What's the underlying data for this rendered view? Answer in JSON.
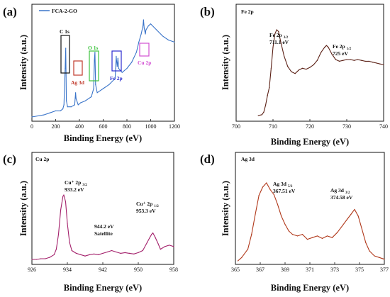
{
  "chart_data": [
    {
      "panel": "(a)",
      "type": "line",
      "legend": "FCA-2-GO",
      "legend_position": "top-left",
      "xlabel": "Binding Energy (eV)",
      "ylabel": "Intensity (a.u.)",
      "xlim": [
        0,
        1200
      ],
      "xticks": [
        0,
        200,
        400,
        600,
        800,
        1000,
        1200
      ],
      "y_ticks_shown": false,
      "line_color": "#3a74c9",
      "series": [
        {
          "x": [
            0,
            100,
            150,
            200,
            240,
            260,
            270,
            280,
            285,
            290,
            300,
            330,
            360,
            368,
            372,
            390,
            410,
            450,
            500,
            520,
            526,
            531,
            536,
            550,
            600,
            650,
            700,
            705,
            710,
            712,
            718,
            724,
            730,
            760,
            800,
            840,
            880,
            900,
            920,
            935,
            940,
            945,
            955,
            960,
            980,
            1000,
            1050,
            1100,
            1150,
            1200
          ],
          "y": [
            1.8,
            1.9,
            2.0,
            2.1,
            2.1,
            2.2,
            2.4,
            4.2,
            5.2,
            2.6,
            2.3,
            2.3,
            2.4,
            3.0,
            2.7,
            2.4,
            2.5,
            2.6,
            2.8,
            3.2,
            4.6,
            5.0,
            3.4,
            3.0,
            3.2,
            3.4,
            3.7,
            4.2,
            4.8,
            4.6,
            4.3,
            4.7,
            4.2,
            4.0,
            4.2,
            4.5,
            5.0,
            5.5,
            5.9,
            6.3,
            6.6,
            6.2,
            5.9,
            6.1,
            6.3,
            6.4,
            6.1,
            5.8,
            5.6,
            5.5
          ]
        }
      ],
      "annotations": [
        {
          "label": "C 1s",
          "x": 285,
          "box_color": "#111111"
        },
        {
          "label": "Ag 3d",
          "x": 368,
          "box_color": "#c0392b"
        },
        {
          "label": "O 1s",
          "x": 531,
          "box_color": "#3cc33c"
        },
        {
          "label": "Fe 2p",
          "x": 711,
          "box_color": "#2b2bd0"
        },
        {
          "label": "Cu 2p",
          "x": 933,
          "box_color": "#d24fd2"
        }
      ]
    },
    {
      "panel": "(b)",
      "type": "line",
      "tag": "Fe 2p",
      "xlabel": "Binding Energy (eV)",
      "ylabel": "Intensity (a.u.)",
      "xlim": [
        700,
        740
      ],
      "xticks": [
        700,
        710,
        720,
        730,
        740
      ],
      "y_ticks_shown": false,
      "line_color": "#5a1f14",
      "peaks": [
        {
          "main": "Fe 2p",
          "sub": "3/2",
          "value": "711.1 eV"
        },
        {
          "main": "Fe 2p",
          "sub": "1/2",
          "value": "725 eV"
        }
      ],
      "series": [
        {
          "x": [
            706,
            707,
            707.5,
            708,
            708.5,
            709,
            709.5,
            710,
            710.5,
            711,
            711.5,
            712,
            713,
            714,
            715,
            716,
            717,
            718,
            719,
            720,
            721,
            722,
            723,
            724,
            724.5,
            725,
            726,
            727,
            728,
            729,
            730,
            731,
            732,
            733,
            734,
            735,
            736,
            737,
            738,
            739,
            740
          ],
          "y": [
            0.02,
            0.03,
            0.06,
            0.14,
            0.25,
            0.34,
            0.56,
            0.8,
            0.95,
            1.0,
            0.98,
            0.88,
            0.7,
            0.58,
            0.52,
            0.5,
            0.54,
            0.56,
            0.55,
            0.57,
            0.6,
            0.65,
            0.74,
            0.8,
            0.82,
            0.8,
            0.72,
            0.66,
            0.64,
            0.65,
            0.66,
            0.66,
            0.65,
            0.66,
            0.65,
            0.64,
            0.64,
            0.63,
            0.62,
            0.61,
            0.6
          ]
        }
      ]
    },
    {
      "panel": "(c)",
      "type": "line",
      "tag": "Cu 2p",
      "xlabel": "Binding Energy (eV)",
      "ylabel": "Intensity (a.u.)",
      "xlim": [
        926,
        958
      ],
      "xticks": [
        926,
        934,
        942,
        950,
        958
      ],
      "y_ticks_shown": false,
      "line_color": "#a3206b",
      "peaks": [
        {
          "main": "Cu⁺ 2p",
          "sub": "3/2",
          "value": "933.2 eV"
        },
        {
          "main": "944.2 eV",
          "sub": "",
          "value": "Satellite"
        },
        {
          "main": "Cu⁺ 2p",
          "sub": "1/2",
          "value": "953.3 eV"
        }
      ],
      "series": [
        {
          "x": [
            926,
            927,
            928,
            929,
            930,
            931,
            931.5,
            932,
            932.5,
            933,
            933.2,
            933.6,
            934,
            934.5,
            935,
            936,
            937,
            938,
            939,
            940,
            941,
            942,
            943,
            944,
            945,
            946,
            947,
            948,
            949,
            950,
            951,
            952,
            952.5,
            953,
            953.3,
            953.8,
            954.5,
            955,
            956,
            957,
            958
          ],
          "y": [
            0.05,
            0.05,
            0.06,
            0.06,
            0.08,
            0.12,
            0.2,
            0.42,
            0.78,
            0.98,
            1.0,
            0.9,
            0.58,
            0.3,
            0.18,
            0.14,
            0.12,
            0.1,
            0.12,
            0.13,
            0.12,
            0.14,
            0.16,
            0.18,
            0.16,
            0.14,
            0.15,
            0.14,
            0.13,
            0.15,
            0.18,
            0.3,
            0.36,
            0.42,
            0.44,
            0.38,
            0.28,
            0.2,
            0.24,
            0.26,
            0.24
          ]
        }
      ]
    },
    {
      "panel": "(d)",
      "type": "line",
      "tag": "Ag 3d",
      "xlabel": "Binding Energy (eV)",
      "ylabel": "Intensity (a.u.)",
      "xlim": [
        365,
        377
      ],
      "xticks": [
        365,
        367,
        369,
        371,
        373,
        375,
        377
      ],
      "y_ticks_shown": false,
      "line_color": "#b0381a",
      "peaks": [
        {
          "main": "Ag 3d",
          "sub": "5/2",
          "value": "367.51 eV"
        },
        {
          "main": "Ag 3d",
          "sub": "3/2",
          "value": "374.58 eV"
        }
      ],
      "series": [
        {
          "x": [
            365.2,
            365.5,
            366,
            366.3,
            366.6,
            366.9,
            367.2,
            367.5,
            367.8,
            368.1,
            368.4,
            368.7,
            369,
            369.3,
            369.6,
            370,
            370.4,
            370.8,
            371.2,
            371.6,
            372,
            372.4,
            372.8,
            373.2,
            373.6,
            374,
            374.3,
            374.6,
            374.9,
            375.2,
            375.5,
            375.8,
            376.2,
            376.6,
            377
          ],
          "y": [
            0.06,
            0.1,
            0.2,
            0.38,
            0.62,
            0.85,
            0.95,
            1.0,
            0.92,
            0.86,
            0.74,
            0.6,
            0.5,
            0.42,
            0.38,
            0.36,
            0.38,
            0.32,
            0.34,
            0.36,
            0.33,
            0.36,
            0.34,
            0.4,
            0.48,
            0.56,
            0.62,
            0.68,
            0.6,
            0.44,
            0.28,
            0.18,
            0.12,
            0.1,
            0.08
          ]
        }
      ]
    }
  ]
}
